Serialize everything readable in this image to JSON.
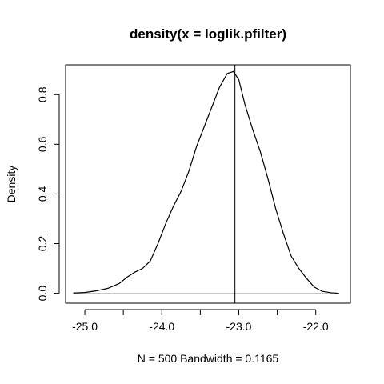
{
  "chart_data": {
    "type": "line",
    "title": "density(x = loglik.pfilter)",
    "xlabel": "N = 500   Bandwidth = 0.1165",
    "ylabel": "Density",
    "xlim": [
      -25.25,
      -21.55
    ],
    "ylim": [
      -0.04,
      0.92
    ],
    "x_ticks": [
      -25.0,
      -24.0,
      -23.0,
      -22.0
    ],
    "x_tick_labels": [
      "-25.0",
      "-24.0",
      "-23.0",
      "-22.0"
    ],
    "y_ticks": [
      0.0,
      0.2,
      0.4,
      0.6,
      0.8
    ],
    "y_tick_labels": [
      "0.0",
      "0.2",
      "0.4",
      "0.6",
      "0.8"
    ],
    "grid": false,
    "baseline": 0,
    "reference_line_x": -23.05,
    "colors": {
      "curve": "#000000",
      "baseline": "#bebebe",
      "reference": "#000000",
      "frame": "#000000"
    },
    "series": [
      {
        "x": [
          -25.15,
          -25.0,
          -24.85,
          -24.7,
          -24.55,
          -24.45,
          -24.35,
          -24.25,
          -24.15,
          -24.05,
          -23.95,
          -23.85,
          -23.75,
          -23.65,
          -23.55,
          -23.45,
          -23.35,
          -23.25,
          -23.15,
          -23.07,
          -23.0,
          -22.92,
          -22.82,
          -22.72,
          -22.62,
          -22.52,
          -22.42,
          -22.32,
          -22.22,
          -22.12,
          -22.02,
          -21.92,
          -21.8,
          -21.7
        ],
        "y": [
          0.001,
          0.003,
          0.01,
          0.02,
          0.04,
          0.065,
          0.085,
          0.1,
          0.13,
          0.2,
          0.28,
          0.35,
          0.41,
          0.49,
          0.59,
          0.67,
          0.75,
          0.83,
          0.885,
          0.893,
          0.86,
          0.76,
          0.66,
          0.57,
          0.46,
          0.34,
          0.24,
          0.15,
          0.1,
          0.06,
          0.025,
          0.008,
          0.002,
          0.0
        ]
      }
    ]
  }
}
